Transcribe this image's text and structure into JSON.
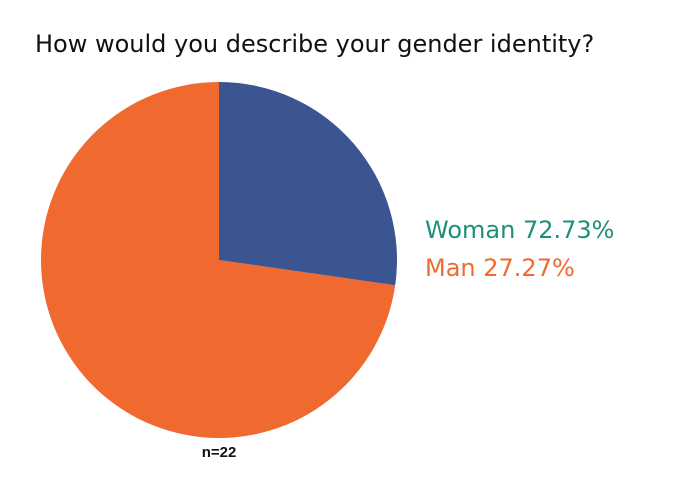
{
  "chart_data": {
    "type": "pie",
    "title": "How would you describe your gender identity?",
    "categories": [
      "Woman",
      "Man"
    ],
    "values": [
      72.73,
      27.27
    ],
    "value_labels": [
      "72.73%",
      "27.27%"
    ],
    "colors": [
      "#f06a30",
      "#3a5592"
    ],
    "label_colors": [
      "#1f8f7c",
      "#f06a30"
    ],
    "annotation": "n=22"
  }
}
